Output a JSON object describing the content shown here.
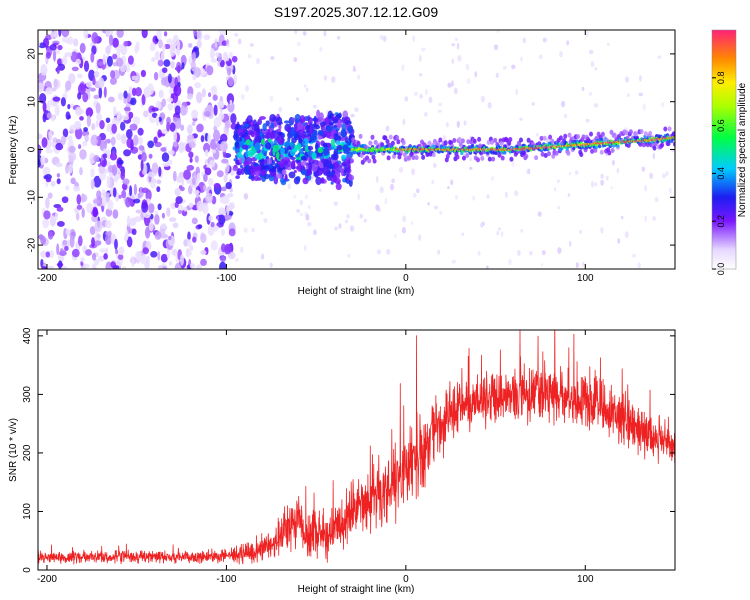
{
  "chart_data": [
    {
      "type": "heatmap",
      "title": "S197.2025.307.12.12.G09",
      "xlabel": "Height of straight line (km)",
      "ylabel": "Frequency (Hz)",
      "xlim": [
        -205,
        150
      ],
      "ylim": [
        -25,
        25
      ],
      "xticks": [
        -200,
        -100,
        0,
        100
      ],
      "yticks": [
        -20,
        -10,
        0,
        10,
        20
      ],
      "colorbar": {
        "label": "Normalized spectral amplitude",
        "range": [
          0,
          1
        ],
        "ticks": [
          "0.0",
          "0.2",
          "0.4",
          "0.6",
          "0.8"
        ]
      },
      "description_regions": [
        {
          "x_range": [
            -205,
            -95
          ],
          "freq_range": [
            -25,
            25
          ],
          "level": "low",
          "note": "broadband noise"
        },
        {
          "x_range": [
            -95,
            -30
          ],
          "freq_range": [
            -8,
            6
          ],
          "level": "medium",
          "note": "signal emerging"
        },
        {
          "x_range": [
            -30,
            150
          ],
          "freq_range": [
            -1,
            3
          ],
          "level": "high",
          "note": "narrow carrier line near 0 Hz rising to ~2 Hz"
        }
      ]
    },
    {
      "type": "line",
      "xlabel": "Height of straight line (km)",
      "ylabel": "SNR (10 * v/v)",
      "xlim": [
        -205,
        150
      ],
      "ylim": [
        0,
        410
      ],
      "xticks": [
        -200,
        -100,
        0,
        100
      ],
      "yticks": [
        0,
        100,
        200,
        300,
        400
      ],
      "series": [
        {
          "name": "SNR",
          "color": "#ee2222",
          "envelope_x": [
            -205,
            -160,
            -120,
            -100,
            -85,
            -75,
            -65,
            -60,
            -55,
            -45,
            -35,
            -25,
            -15,
            -5,
            5,
            15,
            25,
            40,
            60,
            80,
            100,
            115,
            130,
            150
          ],
          "envelope_mean": [
            22,
            22,
            22,
            24,
            30,
            45,
            70,
            90,
            60,
            60,
            80,
            110,
            130,
            150,
            190,
            230,
            270,
            290,
            300,
            300,
            290,
            270,
            240,
            210
          ],
          "envelope_spread": [
            12,
            12,
            12,
            14,
            20,
            30,
            45,
            55,
            45,
            45,
            55,
            65,
            70,
            80,
            80,
            70,
            55,
            55,
            55,
            60,
            60,
            50,
            45,
            40
          ]
        }
      ]
    }
  ]
}
